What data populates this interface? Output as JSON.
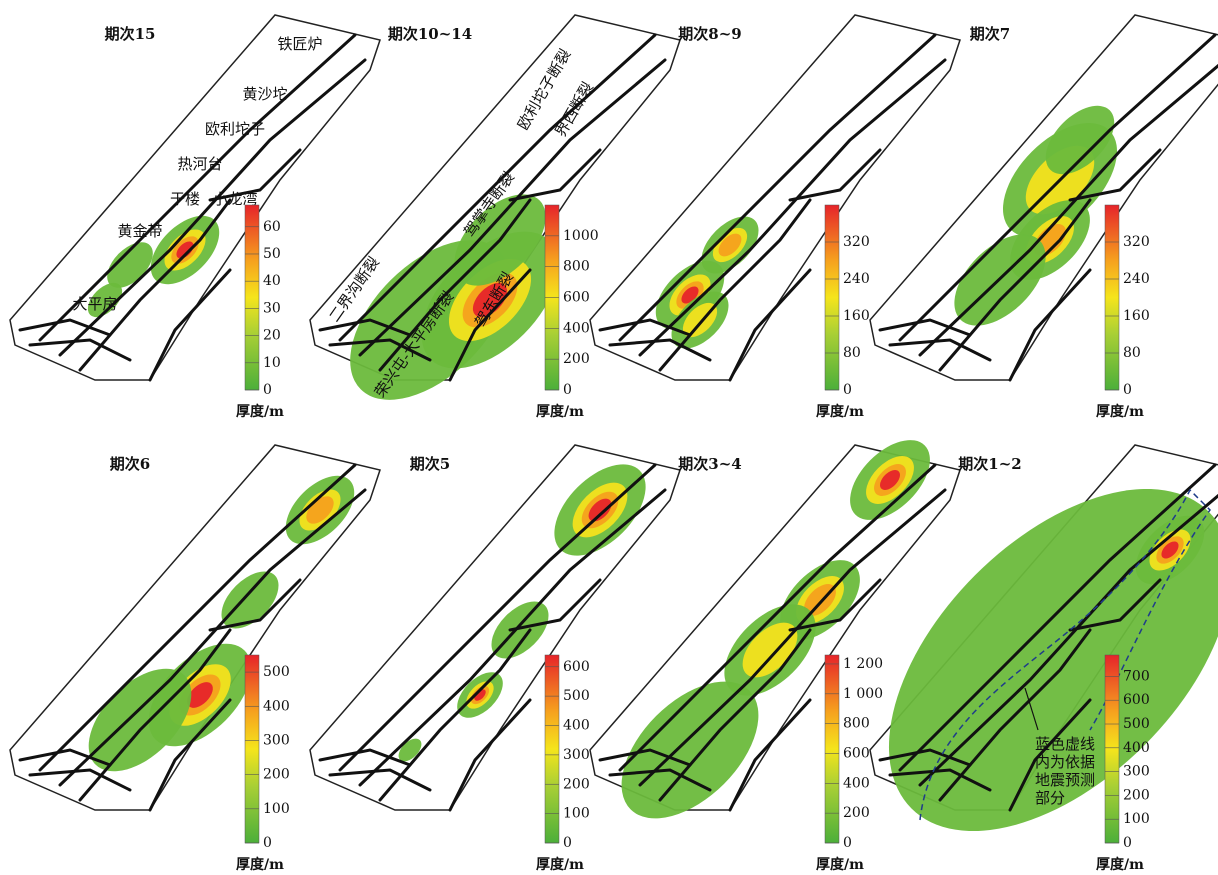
{
  "panels": [
    {
      "title": "期次15",
      "colorbar": {
        "label": "厚度/m",
        "range": [
          0,
          68
        ],
        "ticks": [
          0,
          10,
          20,
          30,
          40,
          50,
          60
        ]
      },
      "labels": [
        "铁匠炉",
        "黄沙坨",
        "欧利坨子",
        "热河台",
        "于楼",
        "小龙湾",
        "黄金带",
        "大平房"
      ]
    },
    {
      "title": "期次10~14",
      "colorbar": {
        "label": "厚度/m",
        "range": [
          0,
          1200
        ],
        "ticks": [
          0,
          200,
          400,
          600,
          800,
          1000
        ]
      },
      "labels": [
        "二界沟断裂",
        "荣兴屯-大平房断裂",
        "驾掌寺断裂",
        "欧利坨子断裂",
        "界西断裂",
        "驾东断裂"
      ]
    },
    {
      "title": "期次8~9",
      "colorbar": {
        "label": "厚度/m",
        "range": [
          0,
          400
        ],
        "ticks": [
          0,
          80,
          160,
          240,
          320
        ]
      },
      "labels": []
    },
    {
      "title": "期次7",
      "colorbar": {
        "label": "厚度/m",
        "range": [
          0,
          400
        ],
        "ticks": [
          0,
          80,
          160,
          240,
          320
        ]
      },
      "labels": []
    },
    {
      "title": "期次6",
      "colorbar": {
        "label": "厚度/m",
        "range": [
          0,
          550
        ],
        "ticks": [
          0,
          100,
          200,
          300,
          400,
          500
        ]
      },
      "labels": []
    },
    {
      "title": "期次5",
      "colorbar": {
        "label": "厚度/m",
        "range": [
          0,
          640
        ],
        "ticks": [
          0,
          100,
          200,
          300,
          400,
          500,
          600
        ]
      },
      "labels": []
    },
    {
      "title": "期次3~4",
      "colorbar": {
        "label": "厚度/m",
        "range": [
          0,
          1260
        ],
        "ticks": [
          0,
          200,
          400,
          600,
          800,
          {
            "value": 1000,
            "label": "1 000"
          },
          {
            "value": 1200,
            "label": "1 200"
          }
        ]
      },
      "labels": []
    },
    {
      "title": "期次1~2",
      "colorbar": {
        "label": "厚度/m",
        "range": [
          0,
          790
        ],
        "ticks": [
          0,
          100,
          200,
          300,
          400,
          500,
          600,
          700
        ]
      },
      "labels": [
        "蓝色虚线",
        "内为依据",
        "地震预测",
        "部分"
      ]
    }
  ]
}
